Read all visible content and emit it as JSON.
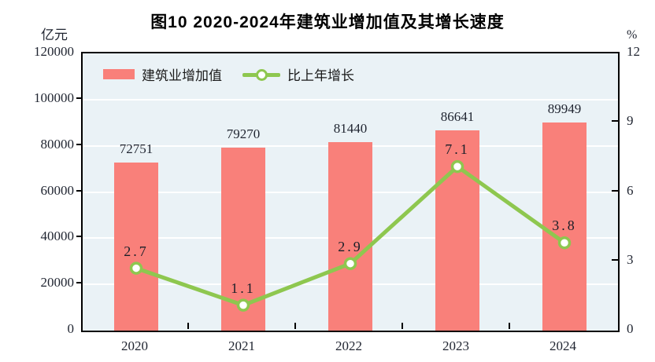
{
  "chart_data": {
    "type": "bar",
    "title": "图10  2020-2024年建筑业增加值及其增长速度",
    "categories": [
      "2020",
      "2021",
      "2022",
      "2023",
      "2024"
    ],
    "series": [
      {
        "name": "建筑业增加值",
        "kind": "bar",
        "axis": "left",
        "values": [
          72751,
          79270,
          81440,
          86641,
          89949
        ],
        "color": "#f9807a"
      },
      {
        "name": "比上年增长",
        "kind": "line",
        "axis": "right",
        "values": [
          2.7,
          1.1,
          2.9,
          7.1,
          3.8
        ],
        "color": "#8ec74f",
        "marker": {
          "fill": "#ffffff",
          "stroke": "#8ec74f"
        }
      }
    ],
    "left_axis": {
      "label": "亿元",
      "range": [
        0,
        120000
      ],
      "ticks": [
        0,
        20000,
        40000,
        60000,
        80000,
        100000,
        120000
      ]
    },
    "right_axis": {
      "label": "%",
      "range": [
        0,
        12
      ],
      "ticks": [
        0,
        3,
        6,
        9,
        12
      ]
    },
    "grid": true,
    "plot_background": "#eaf2f6",
    "gridline_color": "#ffffff",
    "legend_position": "top-left-inside"
  }
}
